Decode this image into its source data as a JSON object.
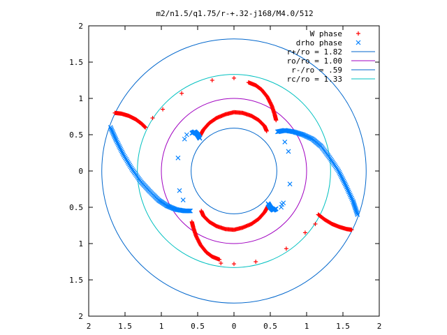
{
  "chart_data": {
    "type": "scatter",
    "title": "m2/n1.5/q1.75/r-+.32-j168/M4.0/512",
    "xlabel": "",
    "ylabel": "",
    "xlim": [
      -2,
      2
    ],
    "ylim": [
      -2,
      2
    ],
    "x_ticks": [
      "2",
      "1.5",
      "1",
      "0.5",
      "0",
      "0.5",
      "1",
      "1.5",
      "2"
    ],
    "y_ticks": [
      "2",
      "1.5",
      "1",
      "0.5",
      "0",
      "0.5",
      "1",
      "1.5",
      "2"
    ],
    "grid": false,
    "legend_position": "top-right",
    "colors": {
      "w_phase": "#ff0000",
      "drho_phase": "#0080ff",
      "r_plus": "#0066cc",
      "r_o": "#a000c0",
      "r_minus": "#0066cc",
      "r_c": "#00c0c0",
      "axes": "#000000"
    },
    "series": [
      {
        "name": "W phase",
        "marker": "+",
        "color": "#ff0000",
        "dense_arcs": [
          {
            "points": [
              [
                -1.64,
                0.8
              ],
              [
                -1.55,
                0.79
              ],
              [
                -1.45,
                0.76
              ],
              [
                -1.35,
                0.71
              ],
              [
                -1.27,
                0.65
              ],
              [
                -1.22,
                0.6
              ]
            ]
          },
          {
            "points": [
              [
                -0.47,
                0.48
              ],
              [
                -0.42,
                0.57
              ],
              [
                -0.34,
                0.66
              ],
              [
                -0.24,
                0.73
              ],
              [
                -0.12,
                0.78
              ],
              [
                0.0,
                0.81
              ],
              [
                0.12,
                0.8
              ],
              [
                0.24,
                0.76
              ],
              [
                0.34,
                0.7
              ],
              [
                0.42,
                0.62
              ],
              [
                0.45,
                0.55
              ]
            ]
          },
          {
            "points": [
              [
                0.2,
                1.22
              ],
              [
                0.3,
                1.18
              ],
              [
                0.38,
                1.12
              ],
              [
                0.46,
                1.02
              ],
              [
                0.52,
                0.9
              ],
              [
                0.56,
                0.78
              ],
              [
                0.58,
                0.7
              ]
            ]
          },
          {
            "points": [
              [
                1.16,
                -0.6
              ],
              [
                1.25,
                -0.67
              ],
              [
                1.35,
                -0.73
              ],
              [
                1.45,
                -0.77
              ],
              [
                1.55,
                -0.8
              ],
              [
                1.62,
                -0.81
              ]
            ]
          },
          {
            "points": [
              [
                0.47,
                -0.48
              ],
              [
                0.42,
                -0.57
              ],
              [
                0.34,
                -0.66
              ],
              [
                0.24,
                -0.73
              ],
              [
                0.12,
                -0.78
              ],
              [
                0.0,
                -0.81
              ],
              [
                -0.12,
                -0.8
              ],
              [
                -0.24,
                -0.76
              ],
              [
                -0.34,
                -0.7
              ],
              [
                -0.42,
                -0.62
              ],
              [
                -0.45,
                -0.55
              ]
            ]
          },
          {
            "points": [
              [
                -0.2,
                -1.22
              ],
              [
                -0.3,
                -1.18
              ],
              [
                -0.38,
                -1.12
              ],
              [
                -0.46,
                -1.02
              ],
              [
                -0.52,
                -0.9
              ],
              [
                -0.56,
                -0.78
              ],
              [
                -0.58,
                -0.7
              ]
            ]
          }
        ],
        "isolated_points": [
          [
            -1.12,
            0.73
          ],
          [
            -0.98,
            0.85
          ],
          [
            -0.72,
            1.07
          ],
          [
            -0.3,
            1.25
          ],
          [
            0.0,
            1.28
          ],
          [
            1.12,
            -0.73
          ],
          [
            0.98,
            -0.85
          ],
          [
            0.72,
            -1.07
          ],
          [
            0.3,
            -1.25
          ],
          [
            0.0,
            -1.28
          ],
          [
            -0.18,
            -1.27
          ]
        ]
      },
      {
        "name": "drho phase",
        "marker": "x",
        "color": "#0080ff",
        "dense_arcs": [
          {
            "points": [
              [
                -1.7,
                0.6
              ],
              [
                -1.62,
                0.42
              ],
              [
                -1.52,
                0.22
              ],
              [
                -1.4,
                0.02
              ],
              [
                -1.28,
                -0.15
              ],
              [
                -1.16,
                -0.28
              ],
              [
                -1.04,
                -0.4
              ],
              [
                -0.92,
                -0.48
              ],
              [
                -0.8,
                -0.53
              ],
              [
                -0.68,
                -0.55
              ],
              [
                -0.6,
                -0.55
              ]
            ]
          },
          {
            "points": [
              [
                -0.58,
                0.52
              ],
              [
                -0.54,
                0.54
              ],
              [
                -0.5,
                0.5
              ],
              [
                -0.47,
                0.45
              ]
            ]
          },
          {
            "points": [
              [
                0.6,
                0.54
              ],
              [
                0.7,
                0.56
              ],
              [
                0.82,
                0.54
              ],
              [
                0.95,
                0.5
              ],
              [
                1.08,
                0.44
              ],
              [
                1.2,
                0.34
              ],
              [
                1.32,
                0.18
              ],
              [
                1.44,
                0.0
              ],
              [
                1.54,
                -0.2
              ],
              [
                1.64,
                -0.42
              ],
              [
                1.7,
                -0.6
              ]
            ]
          },
          {
            "points": [
              [
                0.58,
                -0.52
              ],
              [
                0.54,
                -0.54
              ],
              [
                0.5,
                -0.5
              ],
              [
                0.47,
                -0.45
              ]
            ]
          }
        ],
        "isolated_points": [
          [
            -0.65,
            0.5
          ],
          [
            -0.68,
            0.44
          ],
          [
            -0.77,
            0.18
          ],
          [
            -0.75,
            -0.27
          ],
          [
            -0.7,
            -0.4
          ],
          [
            0.65,
            -0.5
          ],
          [
            0.68,
            -0.44
          ],
          [
            0.77,
            -0.18
          ],
          [
            0.75,
            0.27
          ],
          [
            0.7,
            0.4
          ],
          [
            0.66,
            -0.46
          ]
        ]
      },
      {
        "name": "r+/ro = 1.82",
        "type": "circle",
        "radius": 1.82,
        "color": "#0066cc"
      },
      {
        "name": "ro/ro = 1.00",
        "type": "circle",
        "radius": 1.0,
        "color": "#a000c0"
      },
      {
        "name": "r-/ro = .59",
        "type": "circle",
        "radius": 0.59,
        "color": "#0066cc"
      },
      {
        "name": "rc/ro = 1.33",
        "type": "circle",
        "radius": 1.33,
        "color": "#00c0c0"
      }
    ]
  }
}
